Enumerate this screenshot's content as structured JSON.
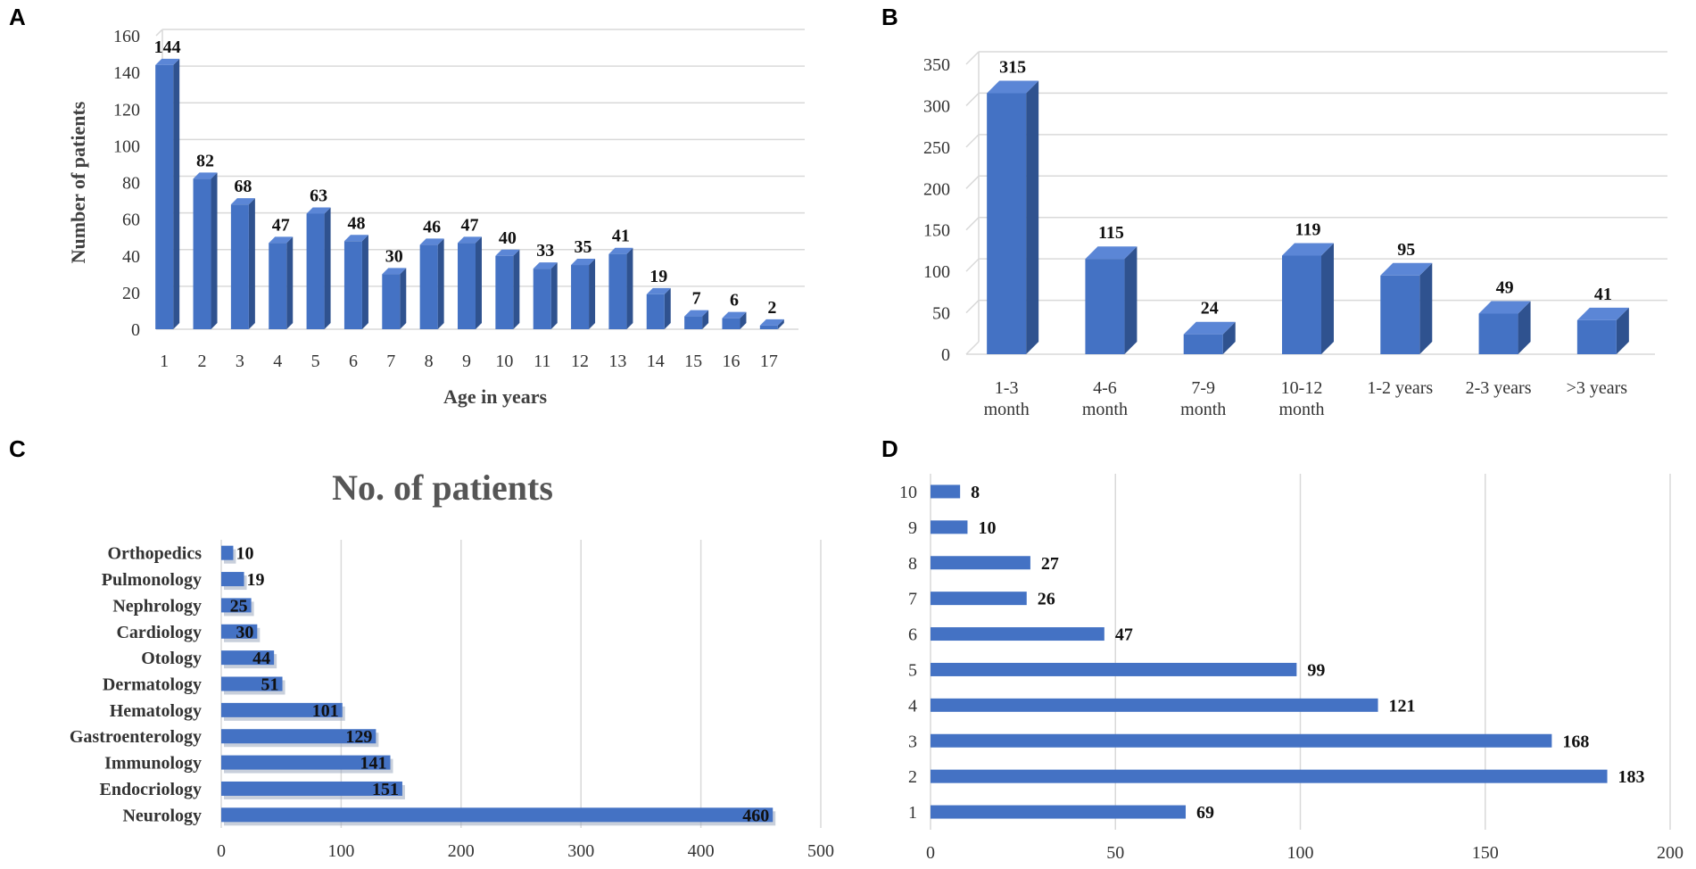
{
  "colors": {
    "bar_front": "#4472c4",
    "bar_side": "#2f528f",
    "bar_top": "#5b86d6",
    "grid": "#d9d9d9",
    "text": "#333333"
  },
  "chart_data": [
    {
      "panel": "A",
      "type": "bar",
      "title": "",
      "xlabel": "Age in years",
      "ylabel": "Number of patients",
      "categories": [
        "1",
        "2",
        "3",
        "4",
        "5",
        "6",
        "7",
        "8",
        "9",
        "10",
        "11",
        "12",
        "13",
        "14",
        "15",
        "16",
        "17"
      ],
      "values": [
        144,
        82,
        68,
        47,
        63,
        48,
        30,
        46,
        47,
        40,
        33,
        35,
        41,
        19,
        7,
        6,
        2
      ],
      "ylim": [
        0,
        160
      ],
      "yticks": [
        0,
        20,
        40,
        60,
        80,
        100,
        120,
        140,
        160
      ],
      "grid": true
    },
    {
      "panel": "B",
      "type": "bar",
      "title": "",
      "xlabel": "",
      "ylabel": "",
      "categories": [
        [
          "1-3",
          "month"
        ],
        [
          "4-6",
          "month"
        ],
        [
          "7-9",
          "month"
        ],
        [
          "10-12",
          "month"
        ],
        [
          "1-2 years"
        ],
        [
          "2-3 years"
        ],
        [
          ">3 years"
        ]
      ],
      "values": [
        315,
        115,
        24,
        119,
        95,
        49,
        41
      ],
      "ylim": [
        0,
        350
      ],
      "yticks": [
        0,
        50,
        100,
        150,
        200,
        250,
        300,
        350
      ],
      "grid": true
    },
    {
      "panel": "C",
      "type": "bar",
      "orientation": "horizontal",
      "title": "No. of patients",
      "xlabel": "",
      "ylabel": "",
      "categories": [
        "Neurology",
        "Endocriology",
        "Immunology",
        "Gastroenterology",
        "Hematology",
        "Dermatology",
        "Otology",
        "Cardiology",
        "Nephrology",
        "Pulmonology",
        "Orthopedics"
      ],
      "values": [
        460,
        151,
        141,
        129,
        101,
        51,
        44,
        30,
        25,
        19,
        10
      ],
      "xlim": [
        0,
        500
      ],
      "xticks": [
        0,
        100,
        200,
        300,
        400,
        500
      ],
      "grid": true
    },
    {
      "panel": "D",
      "type": "bar",
      "orientation": "horizontal",
      "title": "",
      "xlabel": "",
      "ylabel": "",
      "categories": [
        "1",
        "2",
        "3",
        "4",
        "5",
        "6",
        "7",
        "8",
        "9",
        "10"
      ],
      "values": [
        69,
        183,
        168,
        121,
        99,
        47,
        26,
        27,
        10,
        8
      ],
      "xlim": [
        0,
        200
      ],
      "xticks": [
        0,
        50,
        100,
        150,
        200
      ],
      "grid": true
    }
  ]
}
